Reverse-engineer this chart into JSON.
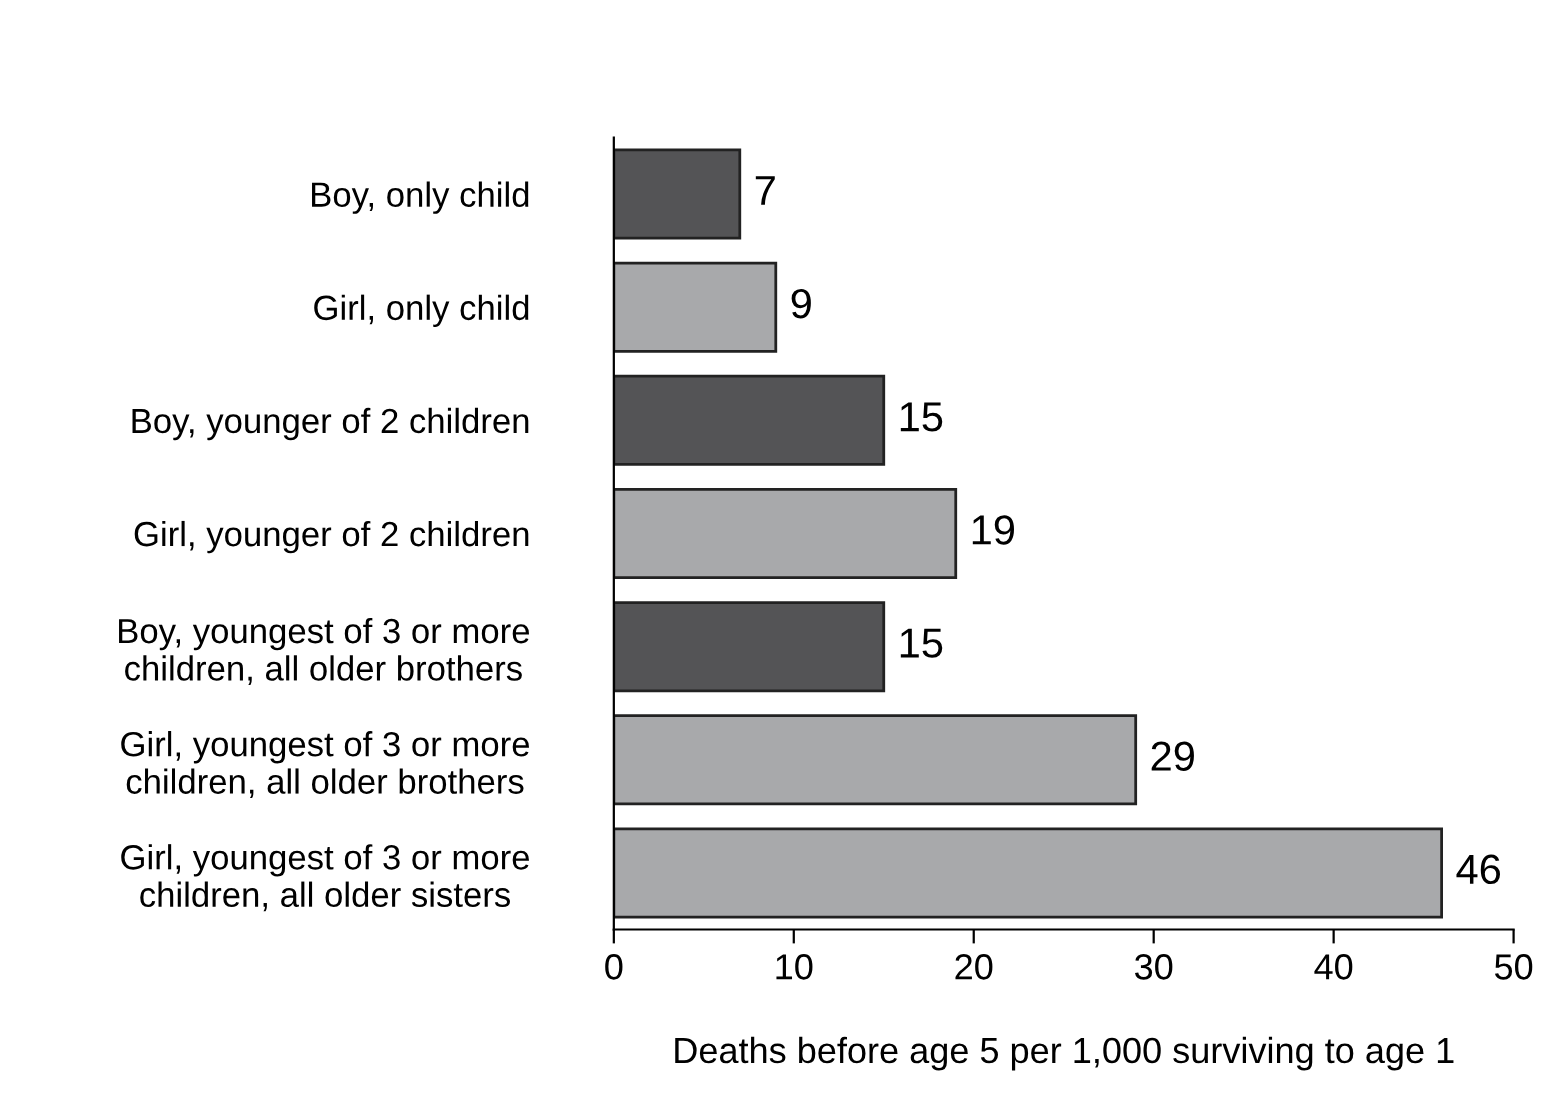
{
  "chart_data": {
    "type": "bar",
    "orientation": "horizontal",
    "xlabel": "Deaths before age 5 per 1,000 surviving to age 1",
    "categories": [
      "Boy, only child",
      "Girl, only child",
      "Boy, younger of 2 children",
      "Girl, younger of 2 children",
      "Boy, youngest of 3 or more\nchildren, all older brothers",
      "Girl, youngest of 3 or more\nchildren, all older brothers",
      "Girl, youngest of 3 or more\nchildren, all older sisters"
    ],
    "values": [
      7,
      9,
      15,
      19,
      15,
      29,
      46
    ],
    "colors": [
      "#545456",
      "#a8a9ab",
      "#545456",
      "#a8a9ab",
      "#545456",
      "#a8a9ab",
      "#a8a9ab"
    ],
    "xlim": [
      0,
      50
    ],
    "xticks": [
      0,
      10,
      20,
      30,
      40,
      50
    ],
    "data_labels": true,
    "grid": false
  }
}
